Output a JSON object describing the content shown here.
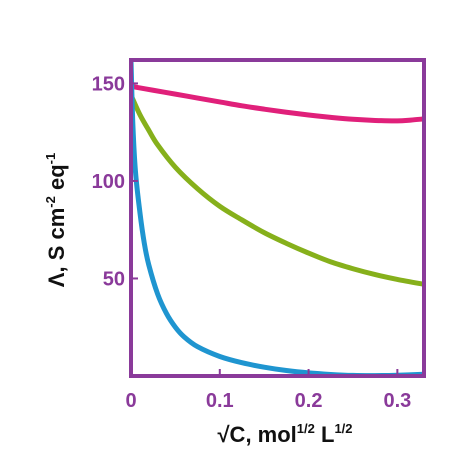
{
  "chart_data": {
    "type": "line",
    "title": "",
    "xlabel": {
      "parts": [
        {
          "text": "√C, mol",
          "sup": false
        },
        {
          "text": "1/2",
          "sup": true
        },
        {
          "text": " L",
          "sup": false
        },
        {
          "text": "1/2",
          "sup": true
        }
      ]
    },
    "ylabel": {
      "parts": [
        {
          "text": "Λ, S cm",
          "sup": false
        },
        {
          "text": "-2",
          "sup": true
        },
        {
          "text": " eq",
          "sup": false
        },
        {
          "text": "-1",
          "sup": true
        }
      ]
    },
    "xlim": [
      0,
      0.33
    ],
    "ylim": [
      0,
      162
    ],
    "x_ticks": [
      {
        "value": 0,
        "label": "0"
      },
      {
        "value": 0.1,
        "label": "0.1"
      },
      {
        "value": 0.2,
        "label": "0.2"
      },
      {
        "value": 0.3,
        "label": "0.3"
      }
    ],
    "y_ticks": [
      {
        "value": 50,
        "label": "50"
      },
      {
        "value": 100,
        "label": "100"
      },
      {
        "value": 150,
        "label": "150"
      }
    ],
    "grid": false,
    "colors": {
      "frame": "#8a3a9a",
      "tick_labels": "#8a3a9a",
      "axis_titles": "#111111"
    },
    "series": [
      {
        "color": "#e0207a",
        "points": [
          [
            0,
            148.5
          ],
          [
            0.025,
            146.5
          ],
          [
            0.05,
            144.5
          ],
          [
            0.075,
            142.5
          ],
          [
            0.1,
            140.5
          ],
          [
            0.125,
            138.5
          ],
          [
            0.15,
            136.8
          ],
          [
            0.175,
            135.2
          ],
          [
            0.2,
            133.8
          ],
          [
            0.225,
            132.6
          ],
          [
            0.25,
            131.6
          ],
          [
            0.275,
            131.0
          ],
          [
            0.3,
            130.8
          ],
          [
            0.315,
            131.2
          ],
          [
            0.33,
            131.8
          ]
        ]
      },
      {
        "color": "#86b01b",
        "points": [
          [
            0,
            144
          ],
          [
            0.01,
            134
          ],
          [
            0.02,
            126
          ],
          [
            0.03,
            118.5
          ],
          [
            0.05,
            107
          ],
          [
            0.075,
            96
          ],
          [
            0.1,
            87
          ],
          [
            0.125,
            80
          ],
          [
            0.15,
            73.5
          ],
          [
            0.175,
            68
          ],
          [
            0.2,
            63
          ],
          [
            0.225,
            58.5
          ],
          [
            0.25,
            55
          ],
          [
            0.275,
            52
          ],
          [
            0.3,
            49.5
          ],
          [
            0.33,
            47
          ]
        ]
      },
      {
        "color": "#1f95d0",
        "points": [
          [
            0,
            162
          ],
          [
            0.002,
            130
          ],
          [
            0.005,
            105
          ],
          [
            0.01,
            84
          ],
          [
            0.015,
            68
          ],
          [
            0.02,
            57
          ],
          [
            0.03,
            42
          ],
          [
            0.04,
            32
          ],
          [
            0.05,
            25
          ],
          [
            0.06,
            20
          ],
          [
            0.075,
            15
          ],
          [
            0.1,
            10
          ],
          [
            0.125,
            6.8
          ],
          [
            0.15,
            4.5
          ],
          [
            0.175,
            2.8
          ],
          [
            0.2,
            1.6
          ],
          [
            0.225,
            0.8
          ],
          [
            0.25,
            0.3
          ],
          [
            0.275,
            0.2
          ],
          [
            0.3,
            0.4
          ],
          [
            0.33,
            0.9
          ]
        ]
      }
    ]
  }
}
